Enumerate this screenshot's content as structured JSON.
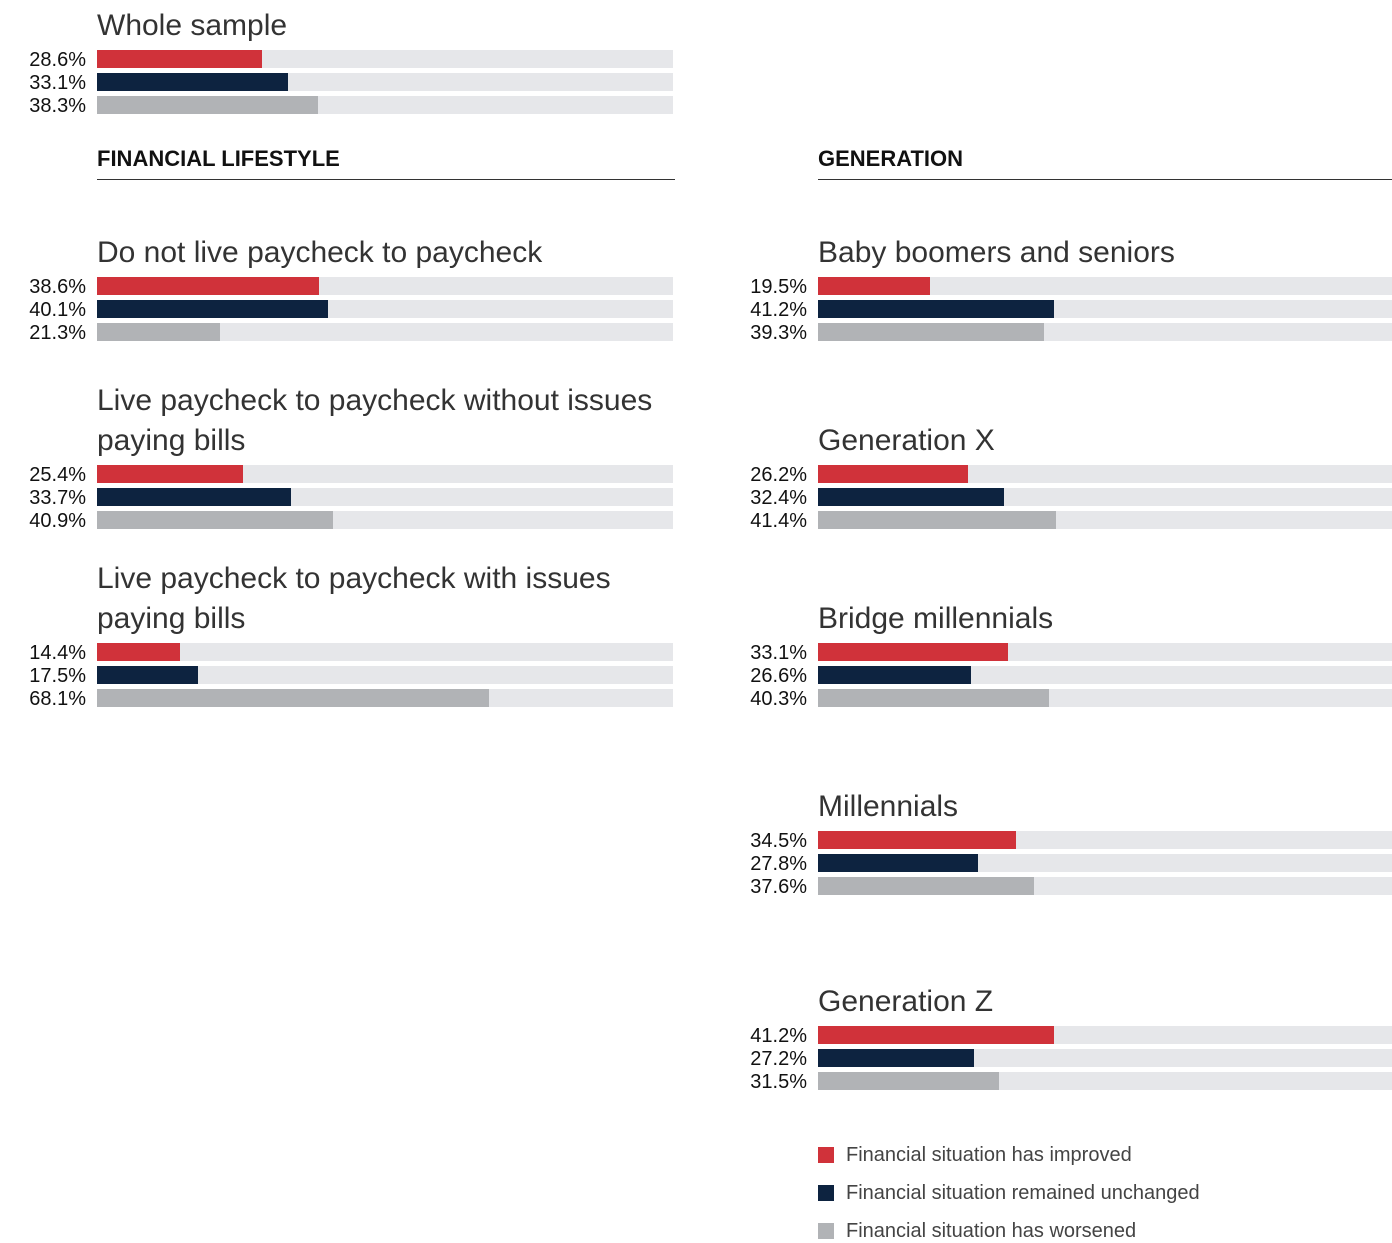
{
  "chart_data": {
    "type": "bar",
    "xlim": [
      0,
      100
    ],
    "track_color": "#e6e7ea",
    "series": [
      {
        "name": "Financial situation has improved",
        "color": "#d0323a"
      },
      {
        "name": "Financial situation remained unchanged",
        "color": "#0d2340"
      },
      {
        "name": "Financial situation has worsened",
        "color": "#b1b3b6"
      }
    ],
    "overall": {
      "title": "Whole sample",
      "values": [
        28.6,
        33.1,
        38.3
      ],
      "value_labels": [
        "28.6%",
        "33.1%",
        "38.3%"
      ]
    },
    "sections": [
      {
        "heading": "FINANCIAL LIFESTYLE",
        "groups": [
          {
            "title": "Do not live paycheck to paycheck",
            "values": [
              38.6,
              40.1,
              21.3
            ],
            "value_labels": [
              "38.6%",
              "40.1%",
              "21.3%"
            ]
          },
          {
            "title": "Live paycheck to paycheck without issues paying bills",
            "values": [
              25.4,
              33.7,
              40.9
            ],
            "value_labels": [
              "25.4%",
              "33.7%",
              "40.9%"
            ]
          },
          {
            "title": "Live paycheck to paycheck with issues paying bills",
            "values": [
              14.4,
              17.5,
              68.1
            ],
            "value_labels": [
              "14.4%",
              "17.5%",
              "68.1%"
            ]
          }
        ]
      },
      {
        "heading": "GENERATION",
        "groups": [
          {
            "title": "Baby boomers and seniors",
            "values": [
              19.5,
              41.2,
              39.3
            ],
            "value_labels": [
              "19.5%",
              "41.2%",
              "39.3%"
            ]
          },
          {
            "title": "Generation X",
            "values": [
              26.2,
              32.4,
              41.4
            ],
            "value_labels": [
              "26.2%",
              "32.4%",
              "41.4%"
            ]
          },
          {
            "title": "Bridge millennials",
            "values": [
              33.1,
              26.6,
              40.3
            ],
            "value_labels": [
              "33.1%",
              "26.6%",
              "40.3%"
            ]
          },
          {
            "title": "Millennials",
            "values": [
              34.5,
              27.8,
              37.6
            ],
            "value_labels": [
              "34.5%",
              "27.8%",
              "37.6%"
            ]
          },
          {
            "title": "Generation Z",
            "values": [
              41.2,
              27.2,
              31.5
            ],
            "value_labels": [
              "41.2%",
              "27.2%",
              "31.5%"
            ]
          }
        ]
      }
    ]
  }
}
